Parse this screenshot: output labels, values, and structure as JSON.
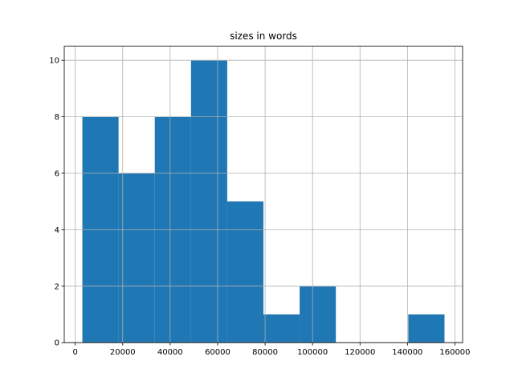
{
  "chart_data": {
    "type": "histogram",
    "title": "sizes in words",
    "bins": [
      3000,
      18260,
      33520,
      48780,
      64040,
      79300,
      94560,
      109820,
      125080,
      140340,
      155600
    ],
    "counts": [
      8,
      6,
      8,
      10,
      5,
      1,
      2,
      0,
      0,
      1
    ],
    "color": "#1f77b4",
    "xlim": [
      -4630,
      163230
    ],
    "xticks": [
      0,
      20000,
      40000,
      60000,
      80000,
      100000,
      120000,
      140000,
      160000
    ],
    "ylim": [
      0,
      10.5
    ],
    "yticks": [
      0,
      2,
      4,
      6,
      8,
      10
    ],
    "grid": true
  }
}
